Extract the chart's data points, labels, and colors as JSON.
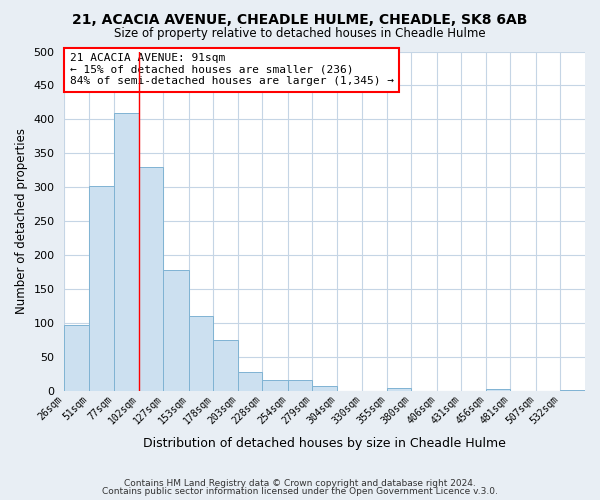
{
  "title1": "21, ACACIA AVENUE, CHEADLE HULME, CHEADLE, SK8 6AB",
  "title2": "Size of property relative to detached houses in Cheadle Hulme",
  "xlabel": "Distribution of detached houses by size in Cheadle Hulme",
  "ylabel": "Number of detached properties",
  "bin_labels": [
    "26sqm",
    "51sqm",
    "77sqm",
    "102sqm",
    "127sqm",
    "153sqm",
    "178sqm",
    "203sqm",
    "228sqm",
    "254sqm",
    "279sqm",
    "304sqm",
    "330sqm",
    "355sqm",
    "380sqm",
    "406sqm",
    "431sqm",
    "456sqm",
    "481sqm",
    "507sqm",
    "532sqm"
  ],
  "bar_values": [
    98,
    302,
    410,
    330,
    178,
    110,
    75,
    28,
    17,
    17,
    8,
    0,
    0,
    5,
    0,
    0,
    0,
    3,
    0,
    0,
    2
  ],
  "bar_color": "#cce0f0",
  "bar_edge_color": "#7fb3d3",
  "bin_edges": [
    26,
    51,
    77,
    102,
    127,
    153,
    178,
    203,
    228,
    254,
    279,
    304,
    330,
    355,
    380,
    406,
    431,
    456,
    481,
    507,
    532,
    557
  ],
  "annotation_title": "21 ACACIA AVENUE: 91sqm",
  "annotation_line1": "← 15% of detached houses are smaller (236)",
  "annotation_line2": "84% of semi-detached houses are larger (1,345) →",
  "red_line_x": 102,
  "ylim": [
    0,
    500
  ],
  "yticks": [
    0,
    50,
    100,
    150,
    200,
    250,
    300,
    350,
    400,
    450,
    500
  ],
  "footer1": "Contains HM Land Registry data © Crown copyright and database right 2024.",
  "footer2": "Contains public sector information licensed under the Open Government Licence v.3.0.",
  "bg_color": "#e8eef4",
  "plot_bg_color": "#ffffff",
  "grid_color": "#c5d5e5"
}
